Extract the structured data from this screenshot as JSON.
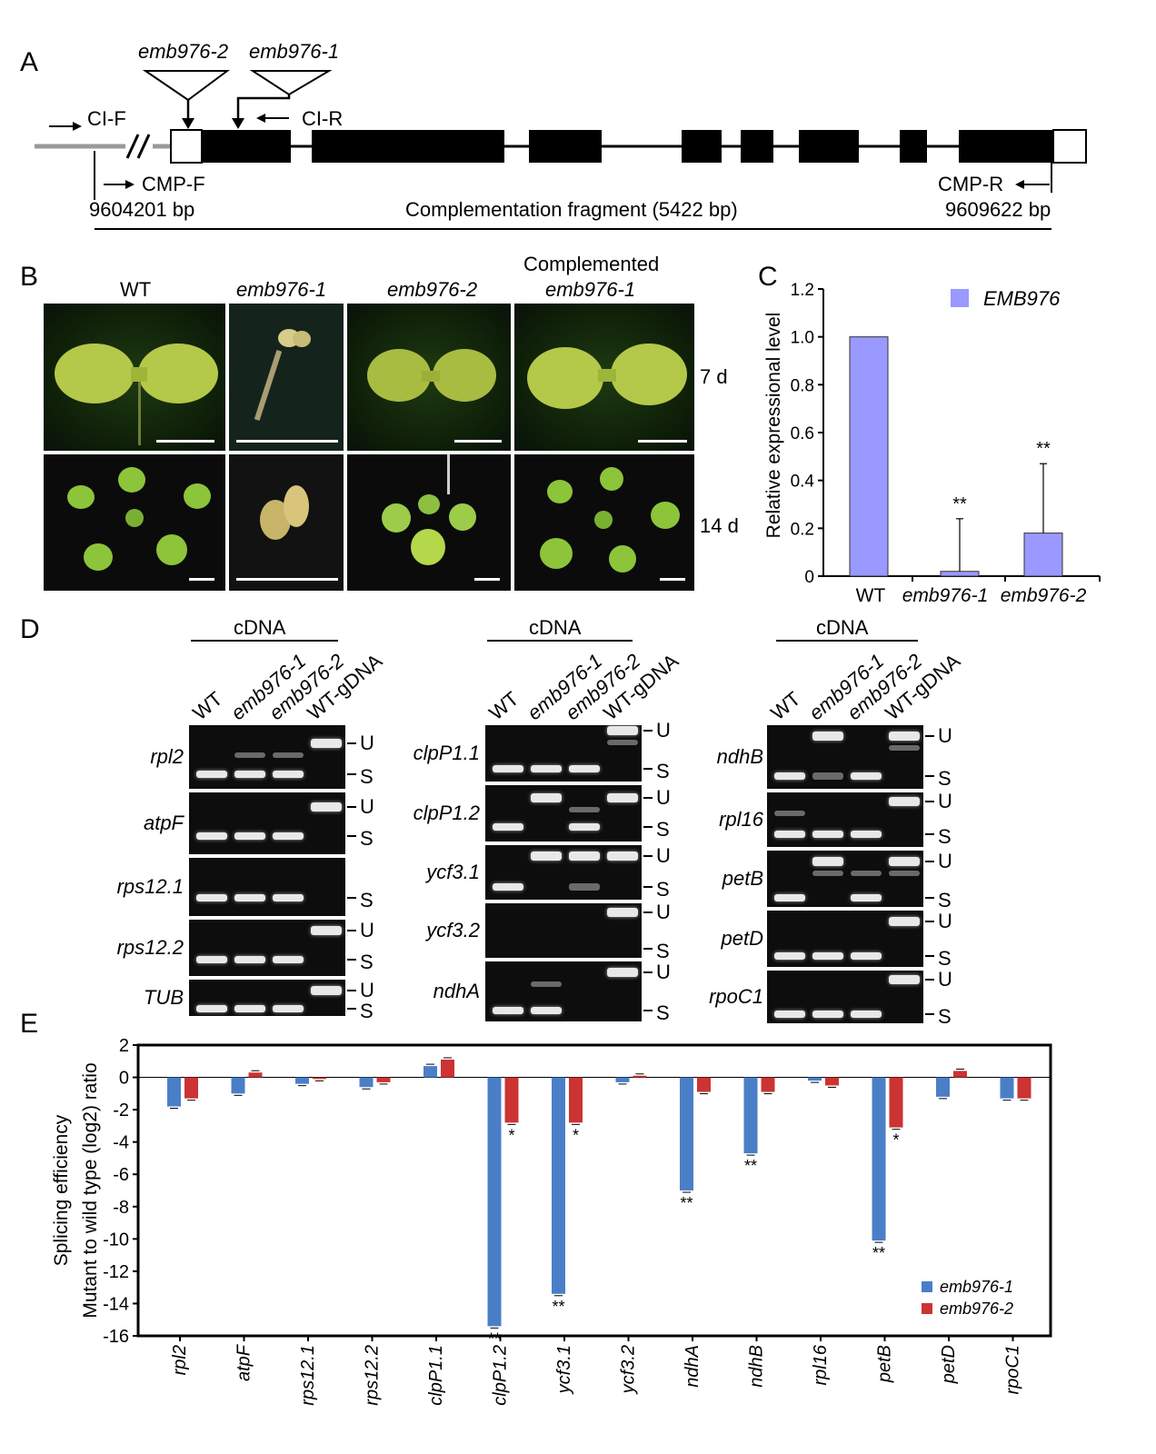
{
  "panels": {
    "A": "A",
    "B": "B",
    "C": "C",
    "D": "D",
    "E": "E"
  },
  "panelA": {
    "allele2": "emb976-2",
    "allele1": "emb976-1",
    "ci_f": "CI-F",
    "ci_r": "CI-R",
    "cmp_f": "CMP-F",
    "cmp_r": "CMP-R",
    "start_bp": "9604201 bp",
    "end_bp": "9609622 bp",
    "fragment": "Complementation fragment (5422 bp)"
  },
  "panelB": {
    "col_wt": "WT",
    "col_e1": "emb976-1",
    "col_e2": "emb976-2",
    "col_comp_line1": "Complemented",
    "col_comp_line2": "emb976-1",
    "row_7d": "7 d",
    "row_14d": "14 d"
  },
  "panelC": {
    "ylabel": "Relative expressional level",
    "legend": "EMB976",
    "bar_color": "#9999ff",
    "star1": "**",
    "star2": "**",
    "xt_wt": "WT",
    "xt_e1": "emb976-1",
    "xt_e2": "emb976-2",
    "yticks": [
      "0",
      "0.2",
      "0.4",
      "0.6",
      "0.8",
      "1.0",
      "1.2"
    ]
  },
  "panelD": {
    "cdna": "cDNA",
    "lanes": [
      "WT",
      "emb976-1",
      "emb976-2",
      "WT-gDNA"
    ],
    "U": "U",
    "S": "S",
    "g1": [
      "rpl2",
      "atpF",
      "rps12.1",
      "rps12.2",
      "TUB"
    ],
    "g2": [
      "clpP1.1",
      "clpP1.2",
      "ycf3.1",
      "ycf3.2",
      "ndhA"
    ],
    "g3": [
      "ndhB",
      "rpl16",
      "petB",
      "petD",
      "rpoC1"
    ]
  },
  "panelE": {
    "ylabel1": "Splicing efficiency",
    "ylabel2": "Mutant to wild type (log2) ratio",
    "legend1": "emb976-1",
    "legend2": "emb976-2",
    "color1": "#4a7fc8",
    "color2": "#cc3333"
  },
  "chart_data": [
    {
      "type": "bar",
      "title": "",
      "xlabel": "",
      "ylabel": "Relative expressional level",
      "categories": [
        "WT",
        "emb976-1",
        "emb976-2"
      ],
      "series": [
        {
          "name": "EMB976",
          "values": [
            1.0,
            0.02,
            0.18
          ],
          "errors": [
            0,
            0.22,
            0.29
          ]
        }
      ],
      "significance": [
        "",
        "**",
        "**"
      ],
      "ylim": [
        0,
        1.2
      ]
    },
    {
      "type": "bar",
      "title": "",
      "xlabel": "",
      "ylabel": "Splicing efficiency Mutant to wild type (log2) ratio",
      "categories": [
        "rpl2",
        "atpF",
        "rps12.1",
        "rps12.2",
        "clpP1.1",
        "clpP1.2",
        "ycf3.1",
        "ycf3.2",
        "ndhA",
        "ndhB",
        "rpl16",
        "petB",
        "petD",
        "rpoC1"
      ],
      "series": [
        {
          "name": "emb976-1",
          "values": [
            -1.8,
            -1.0,
            -0.4,
            -0.6,
            0.7,
            -15.4,
            -13.4,
            -0.3,
            -7.0,
            -4.7,
            -0.2,
            -10.1,
            -1.2,
            -1.3
          ]
        },
        {
          "name": "emb976-2",
          "values": [
            -1.3,
            0.3,
            -0.1,
            -0.3,
            1.1,
            -2.8,
            -2.8,
            0.1,
            -0.9,
            -0.9,
            -0.5,
            -3.1,
            0.4,
            -1.3
          ]
        }
      ],
      "significance1": [
        "",
        "",
        "",
        "",
        "",
        "**",
        "**",
        "",
        "**",
        "**",
        "",
        "**",
        "",
        ""
      ],
      "significance2": [
        "",
        "",
        "",
        "",
        "",
        "*",
        "*",
        "",
        "",
        "",
        "",
        "*",
        "",
        ""
      ],
      "yticks": [
        "2",
        "0",
        "-2",
        "-4",
        "-6",
        "-8",
        "-10",
        "-12",
        "-14",
        "-16"
      ],
      "ylim": [
        -16,
        2
      ]
    }
  ]
}
